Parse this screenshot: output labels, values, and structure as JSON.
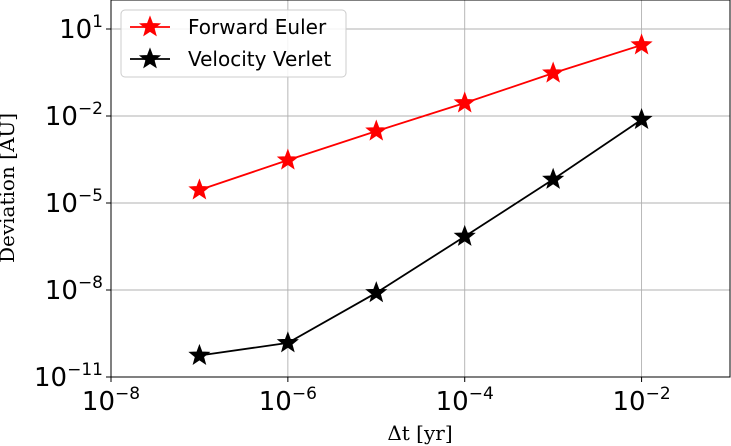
{
  "chart_data": {
    "type": "line",
    "title": "",
    "xlabel": "Δt [yr]",
    "ylabel": "Deviation [AU]",
    "xscale": "log",
    "yscale": "log",
    "xlim": [
      1e-08,
      0.1
    ],
    "ylim": [
      1e-11,
      100
    ],
    "grid": true,
    "legend_position": "top-left",
    "x_ticks": [
      {
        "base": "10",
        "exp": "−8",
        "value": 1e-08
      },
      {
        "base": "10",
        "exp": "−6",
        "value": 1e-06
      },
      {
        "base": "10",
        "exp": "−4",
        "value": 0.0001
      },
      {
        "base": "10",
        "exp": "−2",
        "value": 0.01
      }
    ],
    "y_ticks": [
      {
        "base": "10",
        "exp": "−11",
        "value": 1e-11
      },
      {
        "base": "10",
        "exp": "−8",
        "value": 1e-08
      },
      {
        "base": "10",
        "exp": "−5",
        "value": 1e-05
      },
      {
        "base": "10",
        "exp": "−2",
        "value": 0.01
      },
      {
        "base": "10",
        "exp": "1",
        "value": 10
      }
    ],
    "x": [
      1e-07,
      1e-06,
      1e-05,
      0.0001,
      0.001,
      0.01
    ],
    "series": [
      {
        "name": "Forward Euler",
        "color": "#ff0000",
        "marker": "star",
        "values": [
          2.8e-05,
          0.0003,
          0.003,
          0.028,
          0.3,
          2.8
        ]
      },
      {
        "name": "Velocity Verlet",
        "color": "#000000",
        "marker": "star",
        "values": [
          5.5e-11,
          1.5e-10,
          8e-09,
          7e-07,
          6.5e-05,
          0.0075
        ]
      }
    ]
  }
}
